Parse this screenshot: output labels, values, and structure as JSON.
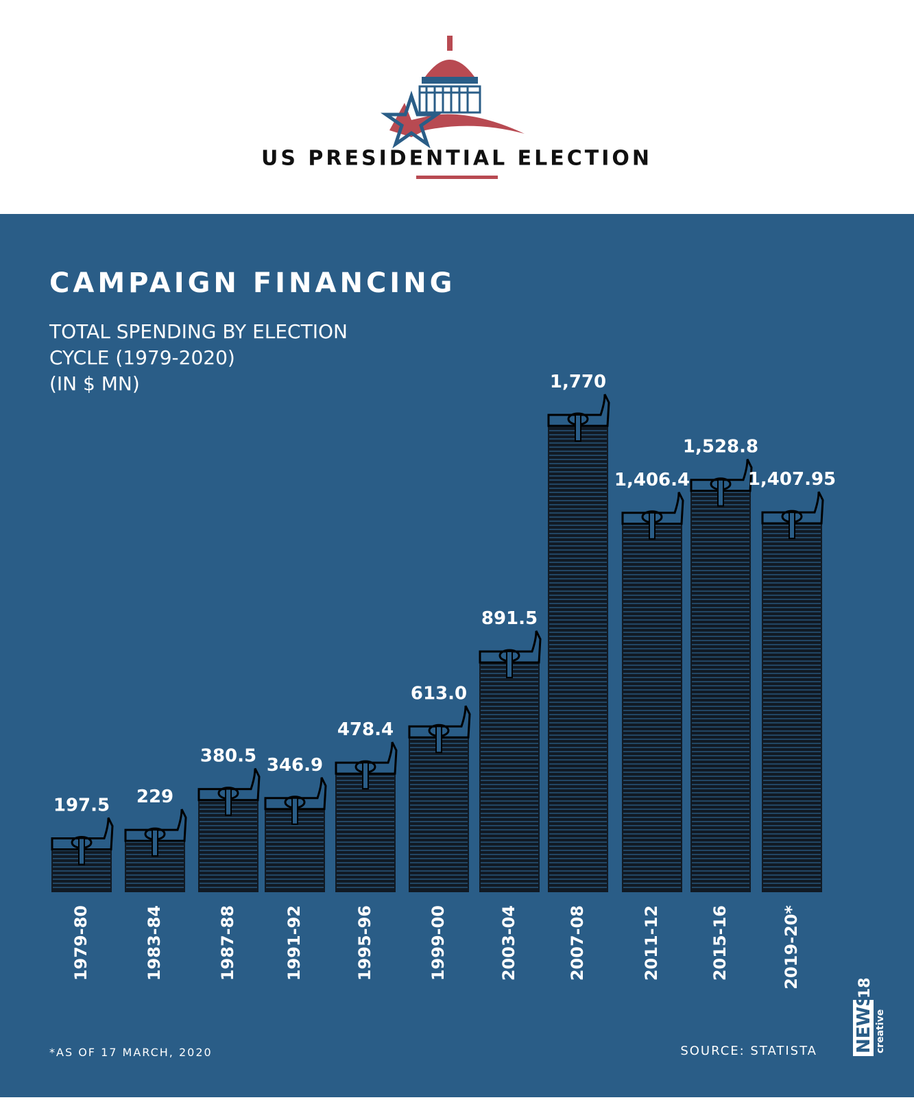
{
  "header": {
    "title": "US PRESIDENTIAL ELECTION"
  },
  "chart_data": {
    "type": "bar",
    "title": "CAMPAIGN FINANCING",
    "subtitle": [
      "TOTAL SPENDING BY ELECTION",
      "CYCLE (1979-2020)",
      "(IN $ MN)"
    ],
    "categories": [
      "1979-80",
      "1983-84",
      "1987-88",
      "1991-92",
      "1995-96",
      "1999-00",
      "2003-04",
      "2007-08",
      "2011-12",
      "2015-16",
      "2019-20*"
    ],
    "values": [
      197.5,
      229,
      380.5,
      346.9,
      478.4,
      613.0,
      891.5,
      1770,
      1406.4,
      1528.8,
      1407.95
    ],
    "value_labels": [
      "197.5",
      "229",
      "380.5",
      "346.9",
      "478.4",
      "613.0",
      "891.5",
      "1,770",
      "1,406.4",
      "1,528.8",
      "1,407.95"
    ],
    "color": "#111a24"
  },
  "footer": {
    "note": "*AS OF 17 MARCH, 2020",
    "source": "SOURCE: STATISTA"
  },
  "brand": {
    "name": "NEWS",
    "number": "18",
    "tag": "creative"
  }
}
